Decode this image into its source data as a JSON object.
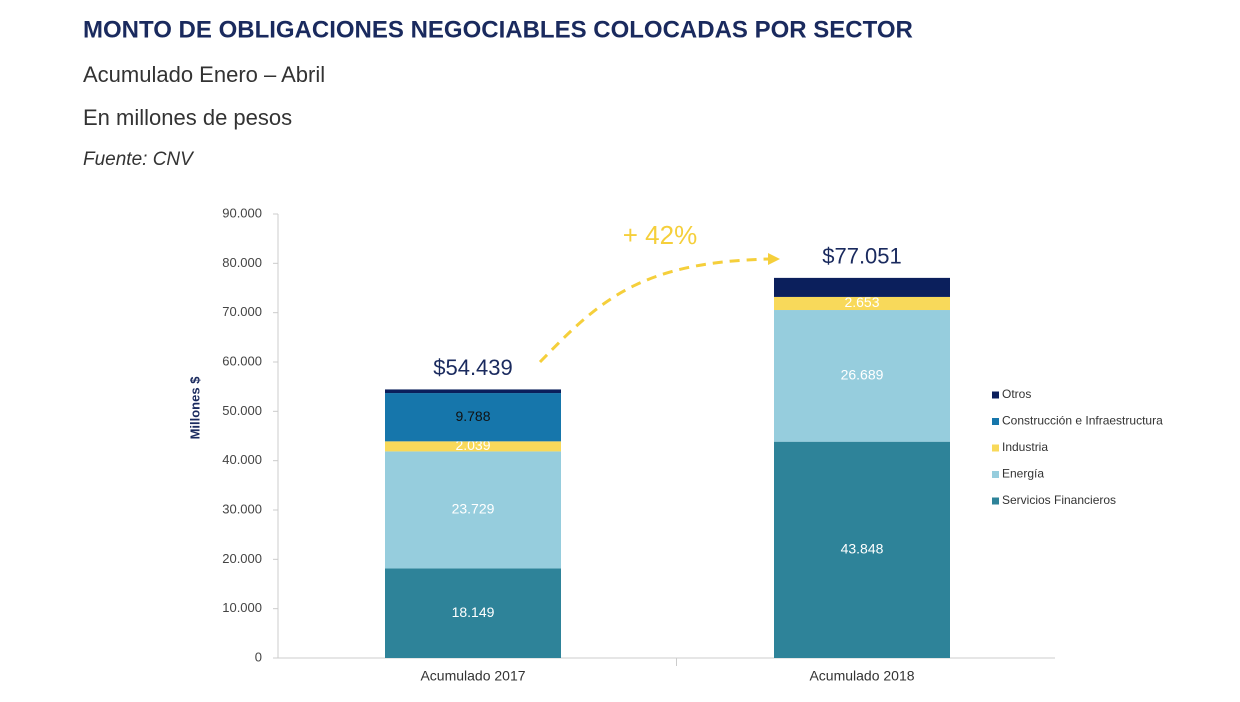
{
  "chart_data": {
    "type": "stacked-bar",
    "title": "MONTO DE OBLIGACIONES NEGOCIABLES COLOCADAS POR SECTOR",
    "subtitle": "Acumulado Enero – Abril",
    "units_note": "En millones de pesos",
    "source": "Fuente: CNV",
    "ylabel": "Millones $",
    "annotation": "+ 42%",
    "categories": [
      "Acumulado 2017",
      "Acumulado 2018"
    ],
    "series": [
      {
        "name": "Servicios Financieros",
        "color": "#2e8399",
        "values": [
          18149,
          43848
        ],
        "value_labels": [
          "18.149",
          "43.848"
        ]
      },
      {
        "name": "Energía",
        "color": "#96cddd",
        "values": [
          23729,
          26689
        ],
        "value_labels": [
          "23.729",
          "26.689"
        ]
      },
      {
        "name": "Industria",
        "color": "#f8d95a",
        "values": [
          2039,
          2653
        ],
        "value_labels": [
          "2.039",
          "2.653"
        ]
      },
      {
        "name": "Construcción e Infraestructura",
        "color": "#1676ab",
        "values": [
          9788,
          0
        ],
        "value_labels": [
          "9.788",
          null
        ]
      },
      {
        "name": "Otros",
        "color": "#0b1f5c",
        "values": [
          734,
          3861
        ],
        "value_labels": [
          null,
          null
        ]
      }
    ],
    "totals": {
      "values": [
        54439,
        77051
      ],
      "value_labels": [
        "$54.439",
        "$77.051"
      ]
    },
    "ylim": [
      0,
      90000
    ],
    "yticks": [
      0,
      {
        "value": 10000,
        "label": "10.000"
      },
      {
        "value": 20000,
        "label": "20.000"
      },
      {
        "value": 30000,
        "label": "30.000"
      },
      {
        "value": 40000,
        "label": "40.000"
      },
      {
        "value": 50000,
        "label": "50.000"
      },
      {
        "value": 60000,
        "label": "60.000"
      },
      {
        "value": 70000,
        "label": "70.000"
      },
      {
        "value": 80000,
        "label": "80.000"
      },
      {
        "value": 90000,
        "label": "90.000"
      }
    ],
    "grid": false,
    "legend": "right"
  }
}
